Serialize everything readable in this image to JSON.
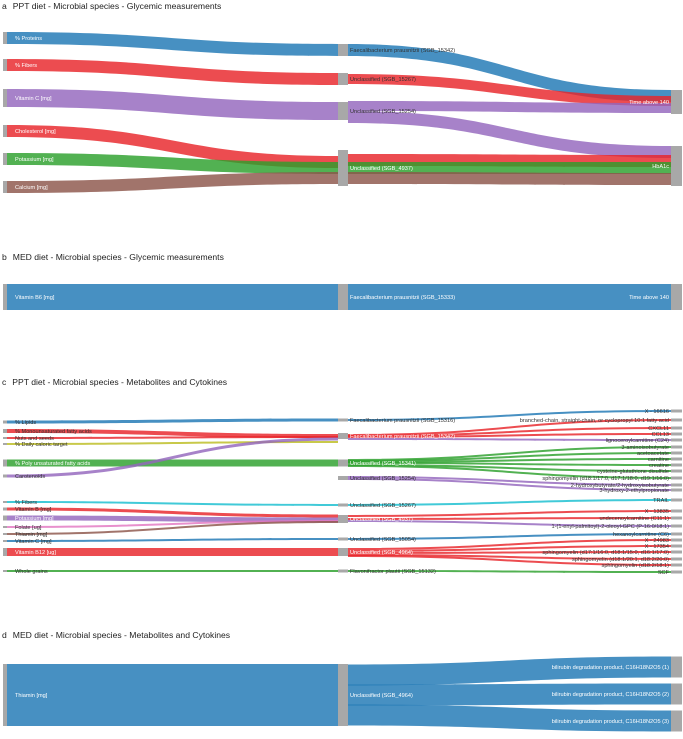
{
  "figure": {
    "panels": [
      {
        "id": "a",
        "letter": "a",
        "title": "PPT diet - Microbial species - Glycemic measurements",
        "sources": [
          "% Proteins",
          "% Fibers",
          "Vitamin C [mg]",
          "Cholesterol [mg]",
          "Potassium [mg]",
          "Calcium [mg]"
        ],
        "species": [
          "Faecalibacterium prausnitzii (SGB_15342)",
          "Unclassified (SGB_15267)",
          "Unclassified (SGB_15254)",
          "Unclassified (SGB_4937)"
        ],
        "targets": [
          "Time above 140",
          "HbA1c"
        ]
      },
      {
        "id": "b",
        "letter": "b",
        "title": "MED diet - Microbial species - Glycemic measurements",
        "sources": [
          "Vitamin B6 [mg]"
        ],
        "species": [
          "Faecalibacterium prausnitzii (SGB_15333)"
        ],
        "targets": [
          "Time above 140"
        ]
      },
      {
        "id": "c",
        "letter": "c",
        "title": "PPT diet - Microbial species - Metabolites and Cytokines",
        "sources": [
          "% Lipids",
          "% Monounsaturated fatty acids",
          "Nuts and seeds",
          "% Daily caloric target",
          "% Poly unsaturated fatty acids",
          "Carotenoids",
          "% Fibers",
          "Vitamin B [mg]",
          "Potassium [mg]",
          "Folate [ug]",
          "Thiamin [mg]",
          "Vitamin C [mg]",
          "Vitamin B12 [ug]",
          "Whole grains"
        ],
        "species": [
          "Faecalibacterium prausnitzii (SGB_15316)",
          "Faecalibacterium prausnitzii (SGB_15342)",
          "Unclassified (SGB_15341)",
          "Unclassified (SGB_15254)",
          "Unclassified (SGB_15267)",
          "Unclassified (SGB_4937)",
          "Unclassified (SGB_15054)",
          "Unclassified (SGB_4964)",
          "Flavonifractor plautii (SGB_15132)"
        ],
        "targets": [
          "X - 16616",
          "branched-chain, straight-chain, or cyclopropyl 10:1 fatty acid",
          "CXCL11",
          "CCL13",
          "lignoceroylcarnitine (C24)",
          "3-aminoisobutyrate",
          "acetoacetate",
          "carnitine",
          "creatine",
          "cysteine-glutathione disulfide",
          "sphingomyelin (d18:1/17:0, d17:1/18:0, d19:1/16:0)",
          "2-hydroxybutyrate/2-hydroxyisobutyrate",
          "3-hydroxy-2-ethylpropionate",
          "TRAIL",
          "X - 13835",
          "undecenoylcarnitine (C11:1)",
          "1-(1-enyl-palmitoyl)-2-oleoyl-GPC (P-16:0/18:1)",
          "hexanoylcarnitine (C6)",
          "X - 24983",
          "X - 17354",
          "sphingomyelin (d17:1/16:0, d18:1/15:0, d16:1/17:0)",
          "sphingomyelin (d18:1/20:1, d18:2/20:0)",
          "sphingomyelin (d18:2/18:1)",
          "SCF"
        ]
      },
      {
        "id": "d",
        "letter": "d",
        "title": "MED diet - Microbial species - Metabolites and Cytokines",
        "sources": [
          "Thiamin [mg]"
        ],
        "species": [
          "Unclassified (SGB_4964)"
        ],
        "targets": [
          "bilirubin degradation product, C16H18N2O5 (1)",
          "bilirubin degradation product, C16H18N2O5 (2)",
          "bilirubin degradation product, C16H18N2O5 (3)"
        ]
      }
    ],
    "colors": {
      "blue": "#1f77b4",
      "red": "#e8252a",
      "purple": "#9467bd",
      "green": "#2ca02c",
      "brown": "#8c564b",
      "pink": "#e377c2",
      "olive": "#bcbd22",
      "cyan": "#17becf",
      "node_gray": "#a8a8a8",
      "title": "#222222"
    }
  }
}
